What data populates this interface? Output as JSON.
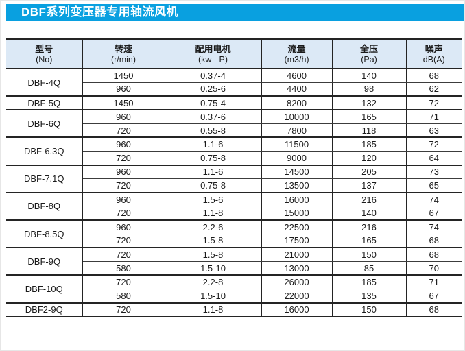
{
  "page": {
    "title": "DBF系列变压器专用轴流风机"
  },
  "colors": {
    "title_bar_blue": "#09a0e0",
    "header_bg": "#dce9f6",
    "border": "#242424",
    "text": "#1b1b1b"
  },
  "table": {
    "headers": {
      "model_line1": "型号",
      "model_no_prefix": "(N",
      "model_no_o": "o",
      "model_no_suffix": ")",
      "speed_line1": "转速",
      "speed_line2": "(r/min)",
      "motor_line1": "配用电机",
      "motor_line2": "(kw - P)",
      "flow_line1": "流量",
      "flow_line2": "(m3/h)",
      "pressure_line1": "全压",
      "pressure_line2": "(Pa)",
      "noise_line1": "噪声",
      "noise_line2": "dB(A)"
    },
    "groups": [
      {
        "model": "DBF-4Q",
        "rows": [
          [
            "1450",
            "0.37-4",
            "4600",
            "140",
            "68"
          ],
          [
            "960",
            "0.25-6",
            "4400",
            "98",
            "62"
          ]
        ]
      },
      {
        "model": "DBF-5Q",
        "rows": [
          [
            "1450",
            "0.75-4",
            "8200",
            "132",
            "72"
          ]
        ]
      },
      {
        "model": "DBF-6Q",
        "rows": [
          [
            "960",
            "0.37-6",
            "10000",
            "165",
            "71"
          ],
          [
            "720",
            "0.55-8",
            "7800",
            "118",
            "63"
          ]
        ]
      },
      {
        "model": "DBF-6.3Q",
        "rows": [
          [
            "960",
            "1.1-6",
            "11500",
            "185",
            "72"
          ],
          [
            "720",
            "0.75-8",
            "9000",
            "120",
            "64"
          ]
        ]
      },
      {
        "model": "DBF-7.1Q",
        "rows": [
          [
            "960",
            "1.1-6",
            "14500",
            "205",
            "73"
          ],
          [
            "720",
            "0.75-8",
            "13500",
            "137",
            "65"
          ]
        ]
      },
      {
        "model": "DBF-8Q",
        "rows": [
          [
            "960",
            "1.5-6",
            "16000",
            "216",
            "74"
          ],
          [
            "720",
            "1.1-8",
            "15000",
            "140",
            "67"
          ]
        ]
      },
      {
        "model": "DBF-8.5Q",
        "rows": [
          [
            "960",
            "2.2-6",
            "22500",
            "216",
            "74"
          ],
          [
            "720",
            "1.5-8",
            "17500",
            "165",
            "68"
          ]
        ]
      },
      {
        "model": "DBF-9Q",
        "rows": [
          [
            "720",
            "1.5-8",
            "21000",
            "150",
            "68"
          ],
          [
            "580",
            "1.5-10",
            "13000",
            "85",
            "70"
          ]
        ]
      },
      {
        "model": "DBF-10Q",
        "rows": [
          [
            "720",
            "2.2-8",
            "26000",
            "185",
            "71"
          ],
          [
            "580",
            "1.5-10",
            "22000",
            "135",
            "67"
          ]
        ]
      },
      {
        "model": "DBF2-9Q",
        "rows": [
          [
            "720",
            "1.1-8",
            "16000",
            "150",
            "68"
          ]
        ]
      }
    ]
  }
}
